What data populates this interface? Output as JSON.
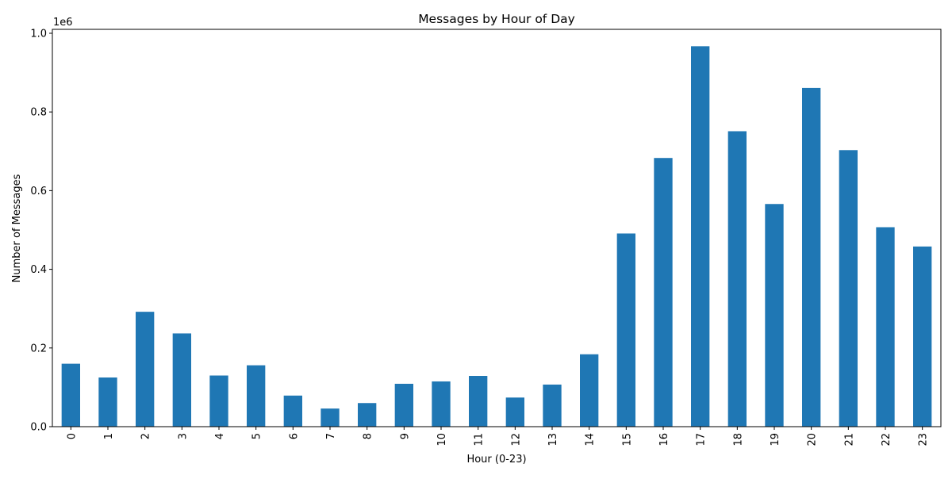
{
  "chart_data": {
    "type": "bar",
    "title": "Messages by Hour of Day",
    "xlabel": "Hour (0-23)",
    "ylabel": "Number of Messages",
    "y_scale_label": "1e6",
    "categories": [
      "0",
      "1",
      "2",
      "3",
      "4",
      "5",
      "6",
      "7",
      "8",
      "9",
      "10",
      "11",
      "12",
      "13",
      "14",
      "15",
      "16",
      "17",
      "18",
      "19",
      "20",
      "21",
      "22",
      "23"
    ],
    "values": [
      160000,
      125000,
      292000,
      237000,
      130000,
      156000,
      79000,
      46000,
      60000,
      109000,
      115000,
      129000,
      74000,
      107000,
      184000,
      491000,
      683000,
      967000,
      751000,
      566000,
      861000,
      703000,
      507000,
      458000
    ],
    "ylim": [
      0,
      1010000
    ],
    "y_ticks": [
      0,
      200000,
      400000,
      600000,
      800000,
      1000000
    ],
    "y_tick_labels": [
      "0.0",
      "0.2",
      "0.4",
      "0.6",
      "0.8",
      "1.0"
    ],
    "bar_color": "#1f77b4",
    "grid": false,
    "legend": false
  }
}
